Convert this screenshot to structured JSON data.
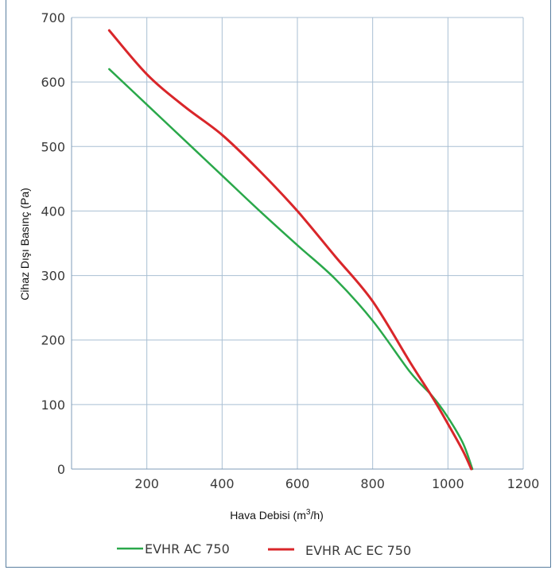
{
  "chart_data": {
    "type": "line",
    "xlabel": "Hava Debisi (m",
    "xlabel_sup": "3",
    "xlabel_tail": "/h)",
    "ylabel": "Cihaz Dışı Basınç (Pa)",
    "xlim": [
      0,
      1200
    ],
    "ylim": [
      0,
      700
    ],
    "x_ticks": [
      "200",
      "400",
      "600",
      "800",
      "1000",
      "1200"
    ],
    "y_ticks": [
      "0",
      "100",
      "200",
      "300",
      "400",
      "500",
      "600",
      "700"
    ],
    "grid": true,
    "legend_position": "bottom",
    "series": [
      {
        "name": "EVHR AC 750",
        "color": "#2aa84a",
        "x": [
          100,
          200,
          300,
          400,
          500,
          600,
          700,
          800,
          900,
          960,
          1000,
          1040,
          1065
        ],
        "y": [
          620,
          565,
          510,
          455,
          400,
          347,
          295,
          230,
          150,
          112,
          80,
          40,
          0
        ]
      },
      {
        "name": "EVHR AC EC 750",
        "color": "#d9262a",
        "x": [
          100,
          200,
          300,
          400,
          500,
          600,
          700,
          800,
          900,
          960,
          1000,
          1040,
          1062
        ],
        "y": [
          680,
          612,
          562,
          518,
          462,
          400,
          330,
          260,
          165,
          110,
          70,
          28,
          0
        ]
      }
    ]
  }
}
